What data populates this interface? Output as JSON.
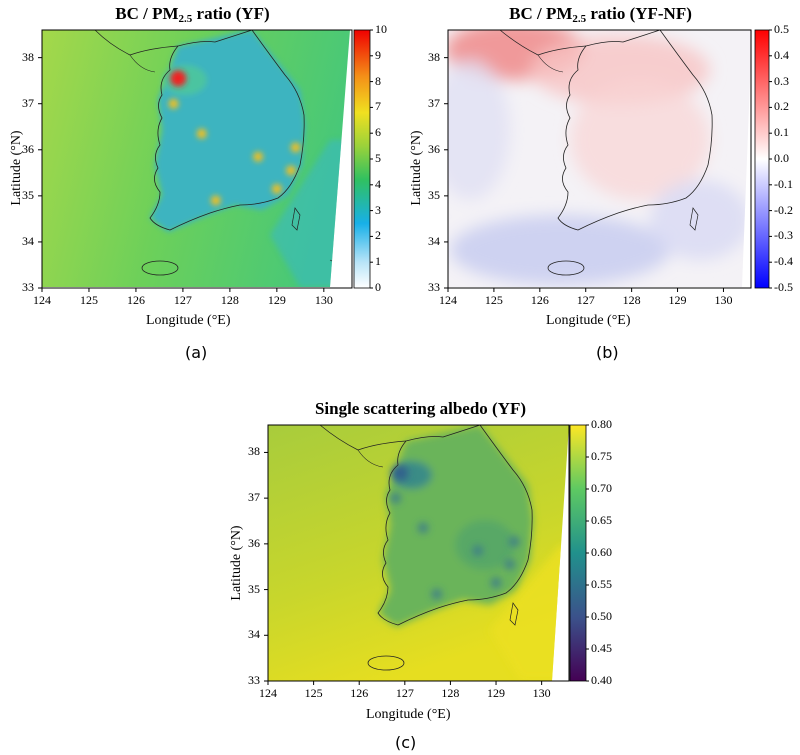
{
  "chart_data": [
    {
      "type": "heatmap",
      "panel_label": "(a)",
      "title_prefix": "BC / PM",
      "title_sub": "2.5",
      "title_suffix": " ratio (YF)",
      "xlabel": "Longitude (°E)",
      "ylabel": "Latitude (°N)",
      "x_ticks": [
        "124",
        "125",
        "126",
        "127",
        "128",
        "129",
        "130"
      ],
      "y_ticks": [
        "38",
        "37",
        "36",
        "35",
        "34",
        "33"
      ],
      "xlim": [
        124,
        130.6
      ],
      "ylim": [
        33,
        38.6
      ],
      "colorbar": {
        "min": 0,
        "max": 10,
        "ticks": [
          "10",
          "9",
          "8",
          "7",
          "6",
          "5",
          "4",
          "3",
          "2",
          "1",
          "0"
        ],
        "colormap": "jet"
      },
      "hotspots": [
        [
          126.9,
          37.55
        ],
        [
          126.8,
          37.0
        ],
        [
          127.4,
          36.35
        ],
        [
          128.6,
          35.85
        ],
        [
          129.3,
          35.55
        ],
        [
          129.0,
          35.15
        ],
        [
          127.7,
          34.9
        ],
        [
          129.4,
          36.05
        ]
      ]
    },
    {
      "type": "heatmap",
      "panel_label": "(b)",
      "title_prefix": "BC / PM",
      "title_sub": "2.5",
      "title_suffix": " ratio (YF-NF)",
      "xlabel": "Longitude (°E)",
      "ylabel": "Latitude (°N)",
      "x_ticks": [
        "124",
        "125",
        "126",
        "127",
        "128",
        "129",
        "130"
      ],
      "y_ticks": [
        "38",
        "37",
        "36",
        "35",
        "34",
        "33"
      ],
      "xlim": [
        124,
        130.6
      ],
      "ylim": [
        33,
        38.6
      ],
      "colorbar": {
        "min": -0.5,
        "max": 0.5,
        "ticks": [
          "0.5",
          "0.4",
          "0.3",
          "0.2",
          "0.1",
          "0.0",
          "-0.1",
          "-0.2",
          "-0.3",
          "-0.4",
          "-0.5"
        ],
        "colormap": "bwr"
      }
    },
    {
      "type": "heatmap",
      "panel_label": "(c)",
      "title_prefix": "Single scattering albedo (YF)",
      "title_sub": "",
      "title_suffix": "",
      "xlabel": "Longitude (°E)",
      "ylabel": "Latitude (°N)",
      "x_ticks": [
        "124",
        "125",
        "126",
        "127",
        "128",
        "129",
        "130"
      ],
      "y_ticks": [
        "38",
        "37",
        "36",
        "35",
        "34",
        "33"
      ],
      "xlim": [
        124,
        130.6
      ],
      "ylim": [
        33,
        38.6
      ],
      "colorbar": {
        "min": 0.4,
        "max": 0.8,
        "ticks": [
          "0.80",
          "0.75",
          "0.70",
          "0.65",
          "0.60",
          "0.55",
          "0.50",
          "0.45",
          "0.40"
        ],
        "colormap": "viridis"
      }
    }
  ]
}
